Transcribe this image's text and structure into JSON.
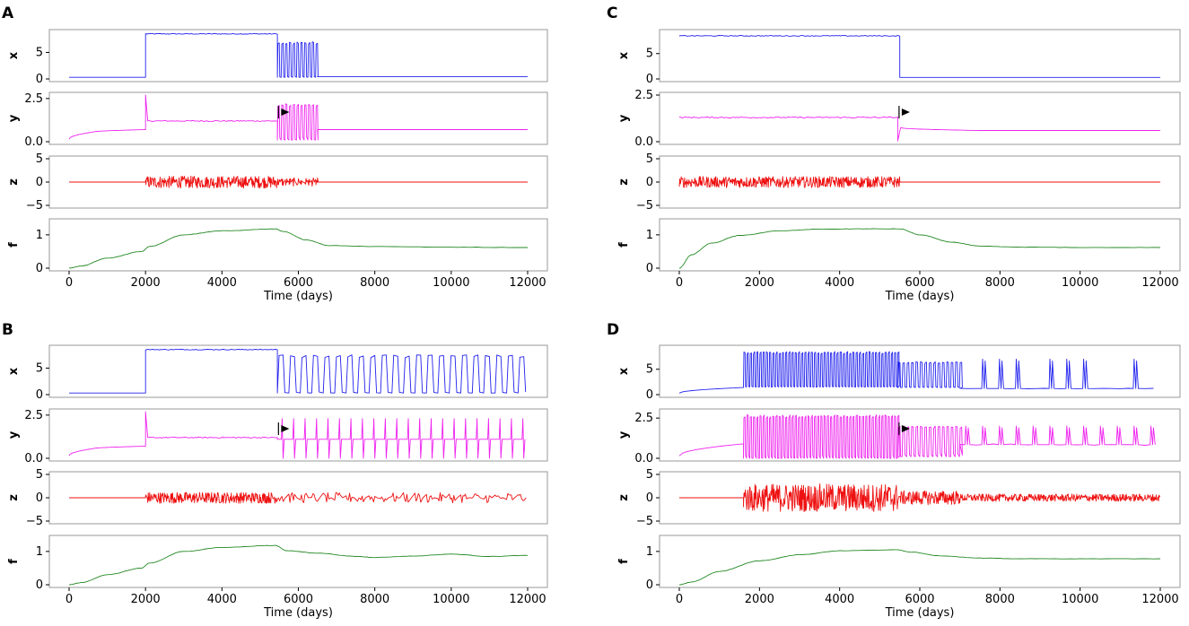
{
  "colors": {
    "x": "#2222ee",
    "y": "#ee22ee",
    "z": "#ee1111",
    "f": "#228822"
  },
  "chart_data": [
    {
      "panel": "A",
      "type": "line",
      "xlabel": "Time (days)",
      "xlim": [
        0,
        12000
      ],
      "xticks": [
        "0",
        "2000",
        "4000",
        "6000",
        "8000",
        "10000",
        "12000"
      ],
      "subplots": [
        {
          "name": "x",
          "ylabel": "x",
          "ylim": [
            0,
            8.8
          ],
          "yticks": [
            "0",
            "5"
          ],
          "ytick_values": [
            0,
            5
          ],
          "segments": [
            {
              "kind": "level",
              "t": [
                0,
                2000
              ],
              "v": 0.3
            },
            {
              "kind": "level",
              "t": [
                2000,
                5450
              ],
              "v": 8.5,
              "noise": 0.08
            },
            {
              "kind": "osc",
              "t": [
                5450,
                6500
              ],
              "lo": 0.3,
              "hi": 7.0,
              "period": 100
            },
            {
              "kind": "level",
              "t": [
                6500,
                12000
              ],
              "v": 0.4
            }
          ]
        },
        {
          "name": "y",
          "ylabel": "y",
          "ylim": [
            0,
            2.7
          ],
          "yticks": [
            "0.0",
            "2.5"
          ],
          "ytick_values": [
            0,
            2.5
          ],
          "arrow_at": 5550,
          "segments": [
            {
              "kind": "ramp",
              "t": [
                0,
                600
              ],
              "v": [
                0.15,
                0.55
              ]
            },
            {
              "kind": "ramp",
              "t": [
                600,
                2000
              ],
              "v": [
                0.55,
                0.7
              ]
            },
            {
              "kind": "spike",
              "t": [
                2000,
                2060
              ],
              "peak": 2.7,
              "to": 1.2
            },
            {
              "kind": "level",
              "t": [
                2060,
                5450
              ],
              "v": 1.2,
              "noise": 0.03
            },
            {
              "kind": "osc",
              "t": [
                5450,
                6500
              ],
              "lo": 0.1,
              "hi": 2.2,
              "period": 100
            },
            {
              "kind": "level",
              "t": [
                6500,
                12000
              ],
              "v": 0.7
            }
          ]
        },
        {
          "name": "z",
          "ylabel": "z",
          "ylim": [
            -5,
            5
          ],
          "yticks": [
            "−5",
            "0",
            "5"
          ],
          "ytick_values": [
            -5,
            0,
            5
          ],
          "segments": [
            {
              "kind": "level",
              "t": [
                0,
                2000
              ],
              "v": 0
            },
            {
              "kind": "noise",
              "t": [
                2000,
                5450
              ],
              "amp": 1.3
            },
            {
              "kind": "bursts",
              "t": [
                5450,
                6500
              ],
              "amp": 0.9,
              "period": 100
            },
            {
              "kind": "level",
              "t": [
                6500,
                12000
              ],
              "v": 0
            }
          ]
        },
        {
          "name": "f",
          "ylabel": "f",
          "ylim": [
            0,
            1.4
          ],
          "yticks": [
            "0",
            "1"
          ],
          "ytick_values": [
            0,
            1
          ],
          "samples": {
            "t": [
              0,
              300,
              1000,
              1900,
              2100,
              3000,
              4000,
              5400,
              5600,
              6200,
              6800,
              8000,
              10000,
              12000
            ],
            "v": [
              0,
              0.06,
              0.3,
              0.5,
              0.65,
              1.0,
              1.12,
              1.18,
              1.1,
              0.85,
              0.68,
              0.65,
              0.63,
              0.62
            ]
          }
        }
      ]
    },
    {
      "panel": "B",
      "type": "line",
      "xlabel": "Time (days)",
      "xlim": [
        0,
        12000
      ],
      "xticks": [
        "0",
        "2000",
        "4000",
        "6000",
        "8000",
        "10000",
        "12000"
      ],
      "subplots": [
        {
          "name": "x",
          "ylabel": "x",
          "ylim": [
            0,
            8.8
          ],
          "yticks": [
            "0",
            "5"
          ],
          "ytick_values": [
            0,
            5
          ],
          "segments": [
            {
              "kind": "level",
              "t": [
                0,
                2000
              ],
              "v": 0.3
            },
            {
              "kind": "level",
              "t": [
                2000,
                5450
              ],
              "v": 8.5,
              "noise": 0.08
            },
            {
              "kind": "osc",
              "t": [
                5450,
                12000
              ],
              "lo": 0.3,
              "hi": 7.5,
              "period": 300
            },
            {
              "kind": "level",
              "t": [
                12000,
                12000
              ],
              "v": 7.5
            }
          ]
        },
        {
          "name": "y",
          "ylabel": "y",
          "ylim": [
            0,
            2.7
          ],
          "yticks": [
            "0.0",
            "2.5"
          ],
          "ytick_values": [
            0,
            2.5
          ],
          "arrow_at": 5550,
          "segments": [
            {
              "kind": "ramp",
              "t": [
                0,
                600
              ],
              "v": [
                0.15,
                0.55
              ]
            },
            {
              "kind": "ramp",
              "t": [
                600,
                2000
              ],
              "v": [
                0.55,
                0.7
              ]
            },
            {
              "kind": "spike",
              "t": [
                2000,
                2060
              ],
              "peak": 2.7,
              "to": 1.2
            },
            {
              "kind": "level",
              "t": [
                2060,
                5450
              ],
              "v": 1.2,
              "noise": 0.03
            },
            {
              "kind": "spikes",
              "t": [
                5450,
                12000
              ],
              "base": 1.1,
              "hi": 2.3,
              "lo": 0.0,
              "period": 300
            }
          ]
        },
        {
          "name": "z",
          "ylabel": "z",
          "ylim": [
            -5,
            5
          ],
          "yticks": [
            "−5",
            "0",
            "5"
          ],
          "ytick_values": [
            -5,
            0,
            5
          ],
          "segments": [
            {
              "kind": "level",
              "t": [
                0,
                2000
              ],
              "v": 0
            },
            {
              "kind": "noise",
              "t": [
                2000,
                5450
              ],
              "amp": 1.2
            },
            {
              "kind": "bursts",
              "t": [
                5450,
                12000
              ],
              "amp": 1.1,
              "period": 300
            }
          ]
        },
        {
          "name": "f",
          "ylabel": "f",
          "ylim": [
            0,
            1.4
          ],
          "yticks": [
            "0",
            "1"
          ],
          "ytick_values": [
            0,
            1
          ],
          "samples": {
            "t": [
              0,
              300,
              1000,
              1900,
              2100,
              3000,
              4000,
              5400,
              5700,
              6500,
              7500,
              8000,
              9000,
              10000,
              11000,
              12000
            ],
            "v": [
              0,
              0.06,
              0.3,
              0.5,
              0.65,
              1.0,
              1.12,
              1.18,
              1.02,
              0.95,
              0.85,
              0.82,
              0.86,
              0.92,
              0.85,
              0.88
            ]
          }
        }
      ]
    },
    {
      "panel": "C",
      "type": "line",
      "xlabel": "Time (days)",
      "xlim": [
        0,
        12000
      ],
      "xticks": [
        "0",
        "2000",
        "4000",
        "6000",
        "8000",
        "10000",
        "12000"
      ],
      "subplots": [
        {
          "name": "x",
          "ylabel": "x",
          "ylim": [
            0,
            9.2
          ],
          "yticks": [
            "0",
            "5"
          ],
          "ytick_values": [
            0,
            5
          ],
          "segments": [
            {
              "kind": "level",
              "t": [
                0,
                5500
              ],
              "v": 8.5,
              "noise": 0.08
            },
            {
              "kind": "level",
              "t": [
                5500,
                12000
              ],
              "v": 0.3
            }
          ]
        },
        {
          "name": "y",
          "ylabel": "y",
          "ylim": [
            0,
            2.5
          ],
          "yticks": [
            "0.0",
            "2.5"
          ],
          "ytick_values": [
            0,
            2.5
          ],
          "arrow_at": 5550,
          "segments": [
            {
              "kind": "level",
              "t": [
                0,
                5450
              ],
              "v": 1.3,
              "noise": 0.03
            },
            {
              "kind": "spike",
              "t": [
                5450,
                5520
              ],
              "peak": 0.05,
              "to": 0.75
            },
            {
              "kind": "ramp",
              "t": [
                5520,
                7500
              ],
              "v": [
                0.75,
                0.6
              ]
            },
            {
              "kind": "level",
              "t": [
                7500,
                12000
              ],
              "v": 0.6
            }
          ]
        },
        {
          "name": "z",
          "ylabel": "z",
          "ylim": [
            -5,
            5
          ],
          "yticks": [
            "−5",
            "0",
            "5"
          ],
          "ytick_values": [
            -5,
            0,
            5
          ],
          "segments": [
            {
              "kind": "noise",
              "t": [
                0,
                5500
              ],
              "amp": 1.2
            },
            {
              "kind": "level",
              "t": [
                5500,
                12000
              ],
              "v": 0
            }
          ]
        },
        {
          "name": "f",
          "ylabel": "f",
          "ylim": [
            0,
            1.4
          ],
          "yticks": [
            "0",
            "1"
          ],
          "ytick_values": [
            0,
            1
          ],
          "samples": {
            "t": [
              0,
              300,
              800,
              1500,
              2500,
              3500,
              4500,
              5500,
              6000,
              6800,
              7500,
              8500,
              10000,
              12000
            ],
            "v": [
              0,
              0.4,
              0.75,
              0.98,
              1.12,
              1.17,
              1.18,
              1.18,
              1.0,
              0.78,
              0.66,
              0.63,
              0.62,
              0.62
            ]
          }
        }
      ]
    },
    {
      "panel": "D",
      "type": "line",
      "xlabel": "Time (days)",
      "xlim": [
        0,
        12000
      ],
      "xticks": [
        "0",
        "2000",
        "4000",
        "6000",
        "8000",
        "10000",
        "12000"
      ],
      "subplots": [
        {
          "name": "x",
          "ylabel": "x",
          "ylim": [
            0,
            9.2
          ],
          "yticks": [
            "0",
            "5"
          ],
          "ytick_values": [
            0,
            5
          ],
          "segments": [
            {
              "kind": "ramp",
              "t": [
                0,
                1600
              ],
              "v": [
                0.3,
                1.4
              ]
            },
            {
              "kind": "osc",
              "t": [
                1600,
                5450
              ],
              "lo": 1.5,
              "hi": 8.5,
              "period": 80
            },
            {
              "kind": "osc",
              "t": [
                5450,
                7000
              ],
              "lo": 1.4,
              "hi": 6.5,
              "period": 110
            },
            {
              "kind": "sparse",
              "t": [
                7000,
                12000
              ],
              "base": 1.2,
              "hi": 7.0,
              "period": 420
            }
          ]
        },
        {
          "name": "y",
          "ylabel": "y",
          "ylim": [
            0,
            2.9
          ],
          "yticks": [
            "0.0",
            "2.5"
          ],
          "ytick_values": [
            0,
            2.5
          ],
          "arrow_at": 5550,
          "segments": [
            {
              "kind": "ramp",
              "t": [
                0,
                1600
              ],
              "v": [
                0.15,
                0.9
              ]
            },
            {
              "kind": "osc",
              "t": [
                1600,
                5450
              ],
              "lo": 0.0,
              "hi": 2.7,
              "period": 80
            },
            {
              "kind": "osc",
              "t": [
                5450,
                7000
              ],
              "lo": 0.1,
              "hi": 2.0,
              "period": 110
            },
            {
              "kind": "sparse",
              "t": [
                7000,
                12000
              ],
              "base": 0.85,
              "hi": 2.0,
              "period": 420
            }
          ]
        },
        {
          "name": "z",
          "ylabel": "z",
          "ylim": [
            -5,
            5
          ],
          "yticks": [
            "−5",
            "0",
            "5"
          ],
          "ytick_values": [
            -5,
            0,
            5
          ],
          "segments": [
            {
              "kind": "level",
              "t": [
                0,
                1600
              ],
              "v": 0
            },
            {
              "kind": "noise",
              "t": [
                1600,
                5450
              ],
              "amp": 3.0
            },
            {
              "kind": "noise",
              "t": [
                5450,
                7000
              ],
              "amp": 1.5
            },
            {
              "kind": "noise",
              "t": [
                7000,
                12000
              ],
              "amp": 0.8
            }
          ]
        },
        {
          "name": "f",
          "ylabel": "f",
          "ylim": [
            0,
            1.4
          ],
          "yticks": [
            "0",
            "1"
          ],
          "ytick_values": [
            0,
            1
          ],
          "samples": {
            "t": [
              0,
              300,
              1000,
              2000,
              3000,
              4000,
              5400,
              5800,
              6500,
              7500,
              8500,
              10000,
              12000
            ],
            "v": [
              0,
              0.08,
              0.4,
              0.72,
              0.9,
              1.02,
              1.05,
              0.98,
              0.87,
              0.8,
              0.78,
              0.78,
              0.78
            ]
          }
        }
      ]
    }
  ]
}
